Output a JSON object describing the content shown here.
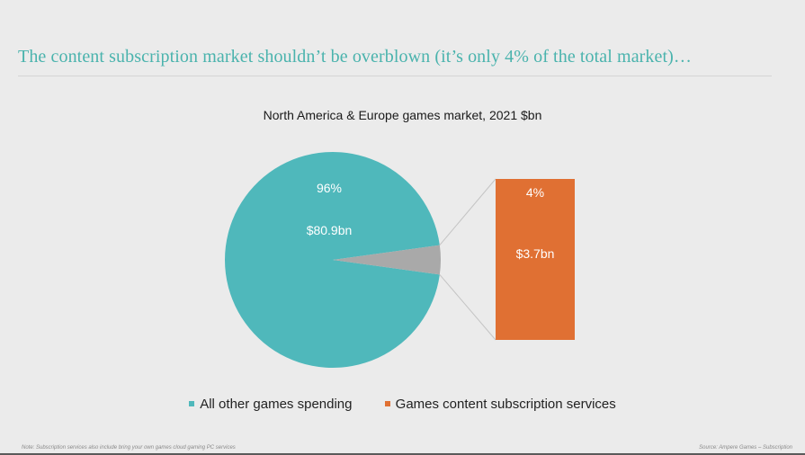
{
  "slide": {
    "title": "The content subscription market shouldn’t be overblown (it’s only 4% of the total market)…",
    "note": "Note: Subscription services also include bring your own games cloud gaming PC services",
    "source": "Source: Ampere Games – Subscription"
  },
  "colors": {
    "teal": "#4fb8bb",
    "orange": "#e07033",
    "grey": "#a9a9a9",
    "title": "#4ab3ad"
  },
  "chart_data": {
    "type": "pie",
    "title": "North America & Europe games market, 2021 $bn",
    "unit": "$bn",
    "slices": [
      {
        "name": "All other games spending",
        "value": 80.9,
        "percent_label": "96%",
        "value_label": "$80.9bn",
        "color": "#4fb8bb"
      },
      {
        "name": "Games content subscription services",
        "value": 3.7,
        "percent_label": "4%",
        "value_label": "$3.7bn",
        "color": "#a9a9a9"
      }
    ],
    "breakout": {
      "name": "Games content subscription services",
      "percent_label": "4%",
      "value_label": "$3.7bn",
      "color": "#e07033"
    },
    "legend": [
      {
        "label": "All other games spending",
        "color": "#4fb8bb"
      },
      {
        "label": "Games content subscription services",
        "color": "#e07033"
      }
    ],
    "legend_position": "bottom"
  }
}
